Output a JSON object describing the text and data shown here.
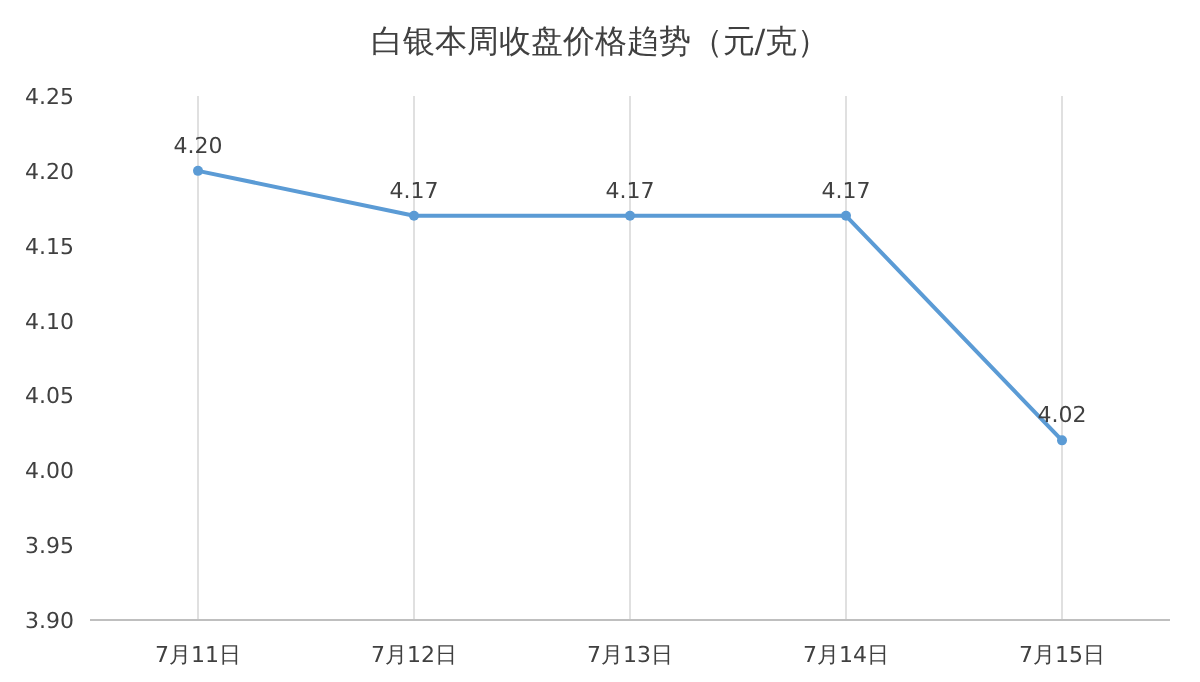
{
  "chart_data": {
    "type": "line",
    "title": "白银本周收盘价格趋势（元/克）",
    "categories": [
      "7月11日",
      "7月12日",
      "7月13日",
      "7月14日",
      "7月15日"
    ],
    "series": [
      {
        "color": "#5b9bd5",
        "values": [
          4.2,
          4.17,
          4.17,
          4.17,
          4.02
        ],
        "value_labels": [
          "4.20",
          "4.17",
          "4.17",
          "4.17",
          "4.02"
        ]
      }
    ],
    "ylim": [
      3.9,
      4.25
    ],
    "yticks": [
      {
        "value": 3.9,
        "label": "3.90"
      },
      {
        "value": 3.95,
        "label": "3.95"
      },
      {
        "value": 4.0,
        "label": "4.00"
      },
      {
        "value": 4.05,
        "label": "4.05"
      },
      {
        "value": 4.1,
        "label": "4.10"
      },
      {
        "value": 4.15,
        "label": "4.15"
      },
      {
        "value": 4.2,
        "label": "4.20"
      },
      {
        "value": 4.25,
        "label": "4.25"
      }
    ],
    "grid": "x",
    "marker": "circle",
    "line_style": "solid"
  }
}
